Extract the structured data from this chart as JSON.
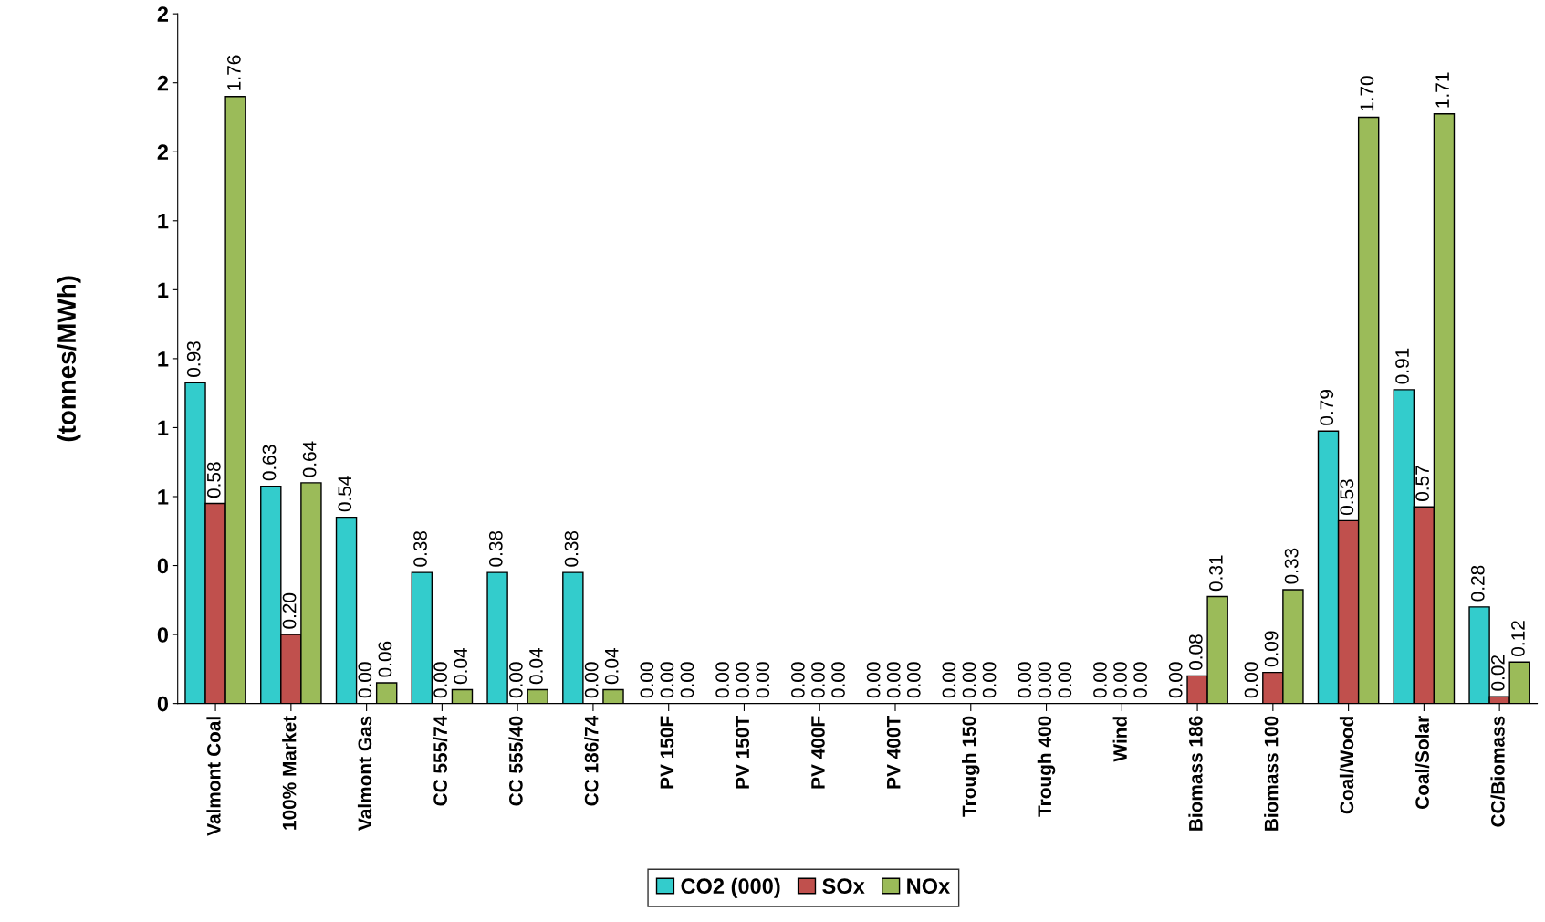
{
  "chart_data": {
    "type": "bar",
    "ylabel": "(tonnes/MWh)",
    "categories": [
      "Valmont Coal",
      "100% Market",
      "Valmont Gas",
      "CC 555/74",
      "CC 555/40",
      "CC 186/74",
      "PV 150F",
      "PV 150T",
      "PV 400F",
      "PV 400T",
      "Trough 150",
      "Trough 400",
      "Wind",
      "Biomass 186",
      "Biomass 100",
      "Coal/Wood",
      "Coal/Solar",
      "CC/Biomass"
    ],
    "series": [
      {
        "name": "CO2 (000)",
        "color": "#33cccc",
        "values": [
          0.93,
          0.63,
          0.54,
          0.38,
          0.38,
          0.38,
          0,
          0,
          0,
          0,
          0,
          0,
          0,
          0,
          0,
          0.79,
          0.91,
          0.28
        ],
        "value_labels": [
          "0.93",
          "0.63",
          "0.54",
          "0.38",
          "0.38",
          "0.38",
          "0.00",
          "0.00",
          "0.00",
          "0.00",
          "0.00",
          "0.00",
          "0.00",
          "0.00",
          "0.00",
          "0.79",
          "0.91",
          "0.28"
        ]
      },
      {
        "name": "SOx",
        "color": "#c0504d",
        "values": [
          0.58,
          0.2,
          0,
          0,
          0,
          0,
          0,
          0,
          0,
          0,
          0,
          0,
          0,
          0.08,
          0.09,
          0.53,
          0.57,
          0.02
        ],
        "value_labels": [
          "0.58",
          "0.20",
          "0.00",
          "0.00",
          "0.00",
          "0.00",
          "0.00",
          "0.00",
          "0.00",
          "0.00",
          "0.00",
          "0.00",
          "0.00",
          "0.08",
          "0.09",
          "0.53",
          "0.57",
          "0.02"
        ]
      },
      {
        "name": "NOx",
        "color": "#9bbb59",
        "values": [
          1.76,
          0.64,
          0.06,
          0.04,
          0.04,
          0.04,
          0,
          0,
          0,
          0,
          0,
          0,
          0,
          0.31,
          0.33,
          1.7,
          1.71,
          0.12
        ],
        "value_labels": [
          "1.76",
          "0.64",
          "0.06",
          "0.04",
          "0.04",
          "0.04",
          "0.00",
          "0.00",
          "0.00",
          "0.00",
          "0.00",
          "0.00",
          "0.00",
          "0.31",
          "0.33",
          "1.70",
          "1.71",
          "0.12"
        ]
      }
    ],
    "ylim": [
      0,
      2
    ],
    "yticks": [
      0,
      {
        "value": 0.2,
        "label": "0"
      },
      {
        "value": 0.4,
        "label": "0"
      },
      {
        "value": 0.6,
        "label": "1"
      },
      {
        "value": 0.8,
        "label": "1"
      },
      {
        "value": 1.0,
        "label": "1"
      },
      {
        "value": 1.2,
        "label": "1"
      },
      {
        "value": 1.4,
        "label": "1"
      },
      {
        "value": 1.6,
        "label": "2"
      },
      {
        "value": 1.8,
        "label": "2"
      },
      2
    ],
    "grid": false,
    "legend": "bottom"
  }
}
